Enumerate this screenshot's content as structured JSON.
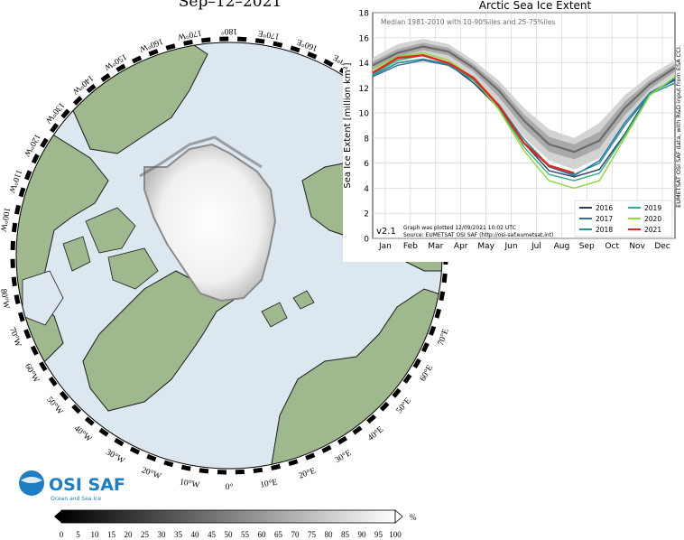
{
  "map_title": "Sep–12–2021",
  "map": {
    "lon_labels": [
      {
        "label": "180°",
        "lon": 180
      },
      {
        "label": "170°E",
        "lon": 170
      },
      {
        "label": "160°E",
        "lon": 160
      },
      {
        "label": "150°E",
        "lon": 150
      },
      {
        "label": "70°E",
        "lon": 70
      },
      {
        "label": "60°E",
        "lon": 60
      },
      {
        "label": "50°E",
        "lon": 50
      },
      {
        "label": "40°E",
        "lon": 40
      },
      {
        "label": "30°E",
        "lon": 30
      },
      {
        "label": "20°E",
        "lon": 20
      },
      {
        "label": "10°E",
        "lon": 10
      },
      {
        "label": "0°",
        "lon": 0
      },
      {
        "label": "10°W",
        "lon": -10
      },
      {
        "label": "20°W",
        "lon": -20
      },
      {
        "label": "30°W",
        "lon": -30
      },
      {
        "label": "40°W",
        "lon": -40
      },
      {
        "label": "50°W",
        "lon": -50
      },
      {
        "label": "60°W",
        "lon": -60
      },
      {
        "label": "70°W",
        "lon": -70
      },
      {
        "label": "80°W",
        "lon": -80
      },
      {
        "label": "90°W",
        "lon": -90
      },
      {
        "label": "100°W",
        "lon": -100
      },
      {
        "label": "110°W",
        "lon": -110
      },
      {
        "label": "120°W",
        "lon": -120
      },
      {
        "label": "130°W",
        "lon": -130
      },
      {
        "label": "140°W",
        "lon": -140
      },
      {
        "label": "150°W",
        "lon": -150
      },
      {
        "label": "160°W",
        "lon": -160
      },
      {
        "label": "170°W",
        "lon": -170
      }
    ],
    "colors": {
      "ocean": "#dde7f0",
      "land": "#9fb88e",
      "coast": "#1a1a1a"
    }
  },
  "colorbar": {
    "ticks": [
      "0",
      "5",
      "10",
      "15",
      "20",
      "25",
      "30",
      "35",
      "40",
      "45",
      "50",
      "55",
      "60",
      "65",
      "70",
      "75",
      "80",
      "85",
      "90",
      "95",
      "100"
    ],
    "unit": "%"
  },
  "logo": {
    "name": "OSI SAF",
    "tagline": "Ocean and Sea Ice",
    "color": "#1d7fc1"
  },
  "chart_data": {
    "type": "line",
    "title": "Arctic Sea Ice Extent",
    "ylabel": "Sea Ice Extent [million km²]",
    "xlabel": "",
    "ylim": [
      0,
      18
    ],
    "yticks": [
      0,
      2,
      4,
      6,
      8,
      10,
      12,
      14,
      16,
      18
    ],
    "grid": true,
    "categories": [
      "Jan",
      "Feb",
      "Mar",
      "Apr",
      "May",
      "Jun",
      "Jul",
      "Aug",
      "Sep",
      "Oct",
      "Nov",
      "Dec"
    ],
    "x": [
      0,
      1,
      2,
      3,
      4,
      5,
      6,
      7,
      8,
      9,
      10,
      11,
      12
    ],
    "median_label": "Median 1981-2010 with 10-90%iles and 25-75%iles",
    "median": [
      13.8,
      14.8,
      15.3,
      14.9,
      13.6,
      11.8,
      9.4,
      7.5,
      6.9,
      7.8,
      10.4,
      12.3,
      13.6
    ],
    "p10": [
      13.2,
      14.1,
      14.6,
      14.2,
      12.8,
      10.8,
      8.1,
      6.2,
      5.5,
      6.4,
      9.2,
      11.5,
      13.0
    ],
    "p90": [
      14.4,
      15.5,
      15.9,
      15.5,
      14.2,
      12.6,
      10.4,
      8.7,
      8.0,
      9.2,
      11.4,
      13.0,
      14.2
    ],
    "p25": [
      13.5,
      14.5,
      15.0,
      14.6,
      13.3,
      11.3,
      8.8,
      6.9,
      6.3,
      7.2,
      9.8,
      11.9,
      13.3
    ],
    "p75": [
      14.1,
      15.1,
      15.6,
      15.2,
      13.9,
      12.2,
      9.9,
      8.1,
      7.5,
      8.5,
      10.9,
      12.6,
      13.9
    ],
    "series": [
      {
        "name": "2016",
        "color": "#2f3a67",
        "values": [
          13.0,
          14.0,
          14.3,
          13.9,
          12.4,
          10.4,
          7.6,
          5.4,
          4.9,
          5.5,
          8.3,
          11.6,
          12.7
        ]
      },
      {
        "name": "2017",
        "color": "#2e6fa8",
        "values": [
          12.9,
          13.8,
          14.2,
          13.8,
          12.6,
          10.7,
          7.9,
          5.7,
          5.0,
          6.2,
          9.2,
          11.6,
          12.6
        ]
      },
      {
        "name": "2018",
        "color": "#2a8f93",
        "values": [
          13.0,
          14.0,
          14.3,
          13.9,
          12.7,
          10.6,
          7.9,
          5.8,
          5.1,
          6.0,
          9.0,
          11.5,
          12.4
        ]
      },
      {
        "name": "2019",
        "color": "#33b27c",
        "values": [
          13.1,
          14.2,
          14.6,
          14.0,
          12.6,
          10.4,
          7.3,
          5.1,
          4.6,
          5.2,
          8.2,
          11.5,
          12.8
        ]
      },
      {
        "name": "2020",
        "color": "#8fd641",
        "values": [
          13.5,
          14.5,
          14.8,
          14.2,
          12.8,
          10.3,
          7.0,
          4.6,
          4.0,
          4.6,
          8.0,
          11.4,
          12.9
        ]
      },
      {
        "name": "2021",
        "color": "#d82a1e",
        "values": [
          13.2,
          14.4,
          14.6,
          14.0,
          12.8,
          10.6,
          7.6,
          5.8,
          5.2,
          null,
          null,
          null,
          null
        ]
      }
    ],
    "annotations": {
      "version": "v2.1",
      "plotted": "Graph was plotted 12/09/2021 10:02 UTC",
      "source": "Source: EUMETSAT OSI SAF (http://osi-saf.eumetsat.int)",
      "credit": "EUMETSAT OSI SAF data, with R&D input from ESA CCI."
    },
    "legend_position": "bottom-right"
  }
}
